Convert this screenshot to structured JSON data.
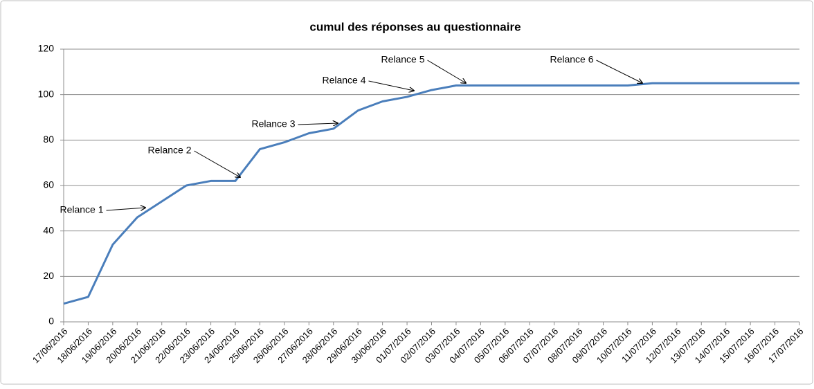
{
  "chart_data": {
    "type": "line",
    "title": "cumul des réponses au questionnaire",
    "categories": [
      "17/06/2016",
      "18/06/2016",
      "19/06/2016",
      "20/06/2016",
      "21/06/2016",
      "22/06/2016",
      "23/06/2016",
      "24/06/2016",
      "25/06/2016",
      "26/06/2016",
      "27/06/2016",
      "28/06/2016",
      "29/06/2016",
      "30/06/2016",
      "01/07/2016",
      "02/07/2016",
      "03/07/2016",
      "04/07/2016",
      "05/07/2016",
      "06/07/2016",
      "07/07/2016",
      "08/07/2016",
      "09/07/2016",
      "10/07/2016",
      "11/07/2016",
      "12/07/2016",
      "13/07/2016",
      "14/07/2016",
      "15/07/2016",
      "16/07/2016",
      "17/07/2016"
    ],
    "values": [
      8,
      11,
      34,
      46,
      53,
      60,
      62,
      62,
      76,
      79,
      83,
      85,
      93,
      97,
      99,
      102,
      104,
      104,
      104,
      104,
      104,
      104,
      104,
      104,
      105,
      105,
      105,
      105,
      105,
      105,
      105
    ],
    "color": "#4a7ebb",
    "ylim": [
      0,
      120
    ],
    "yticks": [
      0,
      20,
      40,
      60,
      80,
      100,
      120
    ],
    "grid": true,
    "annotations": [
      "Relance 1",
      "Relance 2",
      "Relance 3",
      "Relance 4",
      "Relance 5",
      "Relance 6"
    ]
  }
}
